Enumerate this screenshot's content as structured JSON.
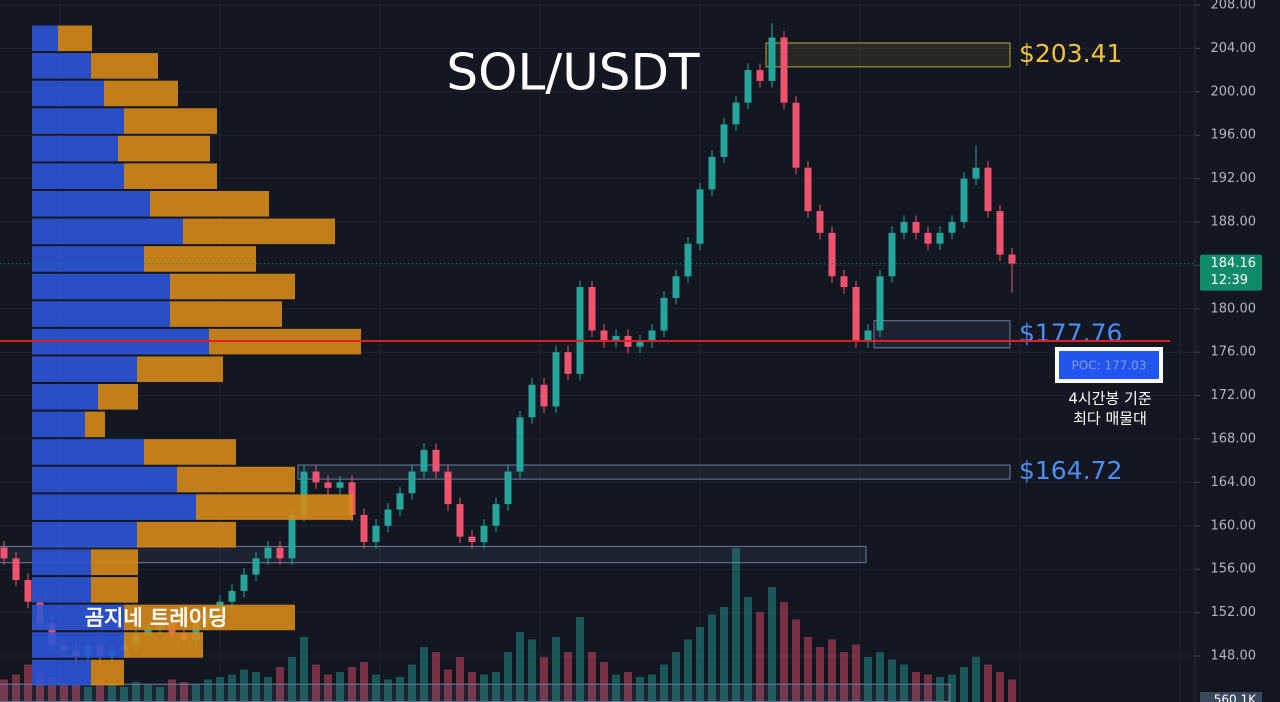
{
  "chart_data": {
    "type": "candlestick",
    "title": "SOL/USDT",
    "watermark": "곰지네 트레이딩",
    "ylim": [
      143.76,
      208.46
    ],
    "yticks": [
      {
        "value": 148,
        "label": "148.00"
      },
      {
        "value": 152,
        "label": "152.00"
      },
      {
        "value": 156,
        "label": "156.00"
      },
      {
        "value": 160,
        "label": "160.00"
      },
      {
        "value": 164,
        "label": "164.00"
      },
      {
        "value": 168,
        "label": "168.00"
      },
      {
        "value": 172,
        "label": "172.00"
      },
      {
        "value": 176,
        "label": "176.00"
      },
      {
        "value": 180,
        "label": "180.00"
      },
      {
        "value": 184,
        "label": "184.00"
      },
      {
        "value": 188,
        "label": "188.00"
      },
      {
        "value": 192,
        "label": "192.00"
      },
      {
        "value": 196,
        "label": "196.00"
      },
      {
        "value": 200,
        "label": "200.00"
      },
      {
        "value": 204,
        "label": "204.00"
      },
      {
        "value": 208,
        "label": "208.00"
      }
    ],
    "grid": true,
    "up_color": "#26a69a",
    "down_color": "#ef5370",
    "ohlc": [
      [
        158,
        158.6,
        156.4,
        157
      ],
      [
        157,
        157.6,
        154.4,
        155
      ],
      [
        155,
        155.6,
        152.4,
        153
      ],
      [
        153,
        153.6,
        150.4,
        151
      ],
      [
        151,
        151.6,
        148.4,
        149
      ],
      [
        149,
        149.6,
        147.9,
        148.5
      ],
      [
        148.5,
        149.1,
        147.4,
        148
      ],
      [
        148,
        149.6,
        147.4,
        149
      ],
      [
        149,
        149.6,
        147.4,
        148
      ],
      [
        148,
        149.1,
        147.4,
        148.5
      ],
      [
        148.5,
        149.6,
        147.9,
        149
      ],
      [
        149,
        150.6,
        148.4,
        150
      ],
      [
        150,
        151.1,
        149.4,
        150.5
      ],
      [
        150.5,
        151.6,
        149.9,
        151
      ],
      [
        151,
        151.6,
        149.4,
        150
      ],
      [
        150,
        150.6,
        148.9,
        149.5
      ],
      [
        149.5,
        151.6,
        148.9,
        151
      ],
      [
        151,
        152.6,
        150.4,
        152
      ],
      [
        152,
        153.6,
        151.4,
        153
      ],
      [
        153,
        154.6,
        152.4,
        154
      ],
      [
        154,
        156.1,
        153.4,
        155.5
      ],
      [
        155.5,
        157.6,
        154.9,
        157
      ],
      [
        157,
        158.6,
        156.4,
        158
      ],
      [
        158,
        158.6,
        156.4,
        157
      ],
      [
        157,
        161.6,
        156.4,
        161
      ],
      [
        161,
        165.6,
        160.4,
        165
      ],
      [
        165,
        165.6,
        163.4,
        164
      ],
      [
        164,
        164.6,
        162.9,
        163.5
      ],
      [
        163.5,
        164.6,
        162.9,
        164
      ],
      [
        164,
        164.6,
        160.4,
        161
      ],
      [
        161,
        161.6,
        157.9,
        158.5
      ],
      [
        158.5,
        160.6,
        157.9,
        160
      ],
      [
        160,
        162.1,
        159.4,
        161.5
      ],
      [
        161.5,
        163.6,
        160.9,
        163
      ],
      [
        163,
        165.6,
        162.4,
        165
      ],
      [
        165,
        167.6,
        164.4,
        167
      ],
      [
        167,
        167.6,
        164.4,
        165
      ],
      [
        165,
        165.6,
        161.4,
        162
      ],
      [
        162,
        162.6,
        158.4,
        159
      ],
      [
        159,
        159.6,
        157.9,
        158.5
      ],
      [
        158.5,
        160.6,
        157.9,
        160
      ],
      [
        160,
        162.6,
        159.4,
        162
      ],
      [
        162,
        165.6,
        161.4,
        165
      ],
      [
        165,
        170.6,
        164.4,
        170
      ],
      [
        170,
        173.6,
        169.4,
        173
      ],
      [
        173,
        173.6,
        170.4,
        171
      ],
      [
        171,
        176.6,
        170.4,
        176
      ],
      [
        176,
        176.6,
        173.4,
        174
      ],
      [
        174,
        182.6,
        173.4,
        182
      ],
      [
        182,
        182.6,
        177.4,
        178
      ],
      [
        178,
        178.6,
        176.4,
        177
      ],
      [
        177,
        178.1,
        176.4,
        177.5
      ],
      [
        177.5,
        178.1,
        175.9,
        176.5
      ],
      [
        176.5,
        177.6,
        175.9,
        177
      ],
      [
        177,
        178.6,
        176.4,
        178
      ],
      [
        178,
        181.6,
        177.4,
        181
      ],
      [
        181,
        183.6,
        180.4,
        183
      ],
      [
        183,
        186.6,
        182.4,
        186
      ],
      [
        186,
        191.6,
        185.4,
        191
      ],
      [
        191,
        194.6,
        190.4,
        194
      ],
      [
        194,
        197.6,
        193.4,
        197
      ],
      [
        197,
        199.6,
        196.4,
        199
      ],
      [
        199,
        202.6,
        198.4,
        202
      ],
      [
        202,
        202.6,
        200.4,
        201
      ],
      [
        201,
        206.3,
        200.4,
        205
      ],
      [
        205,
        205.6,
        198.4,
        199
      ],
      [
        199,
        199.6,
        192.4,
        193
      ],
      [
        193,
        193.6,
        188.4,
        189
      ],
      [
        189,
        189.6,
        186.4,
        187
      ],
      [
        187,
        187.6,
        182.4,
        183
      ],
      [
        183,
        183.6,
        181.4,
        182
      ],
      [
        182,
        182.6,
        176.4,
        177
      ],
      [
        177,
        178.6,
        176.4,
        178
      ],
      [
        178,
        183.6,
        177.4,
        183
      ],
      [
        183,
        187.6,
        182.4,
        187
      ],
      [
        187,
        188.6,
        186.4,
        188
      ],
      [
        188,
        188.6,
        186.4,
        187
      ],
      [
        187,
        187.6,
        185.4,
        186
      ],
      [
        186,
        187.6,
        185.4,
        187
      ],
      [
        187,
        188.6,
        186.4,
        188
      ],
      [
        188,
        192.6,
        187.4,
        192
      ],
      [
        192,
        195,
        191.4,
        193
      ],
      [
        193,
        193.6,
        188.4,
        189
      ],
      [
        189,
        189.6,
        184.4,
        185
      ],
      [
        185,
        185.6,
        181.5,
        184.16
      ]
    ],
    "volume": [
      90,
      110,
      150,
      120,
      100,
      80,
      70,
      60,
      90,
      70,
      60,
      80,
      70,
      60,
      90,
      80,
      70,
      90,
      100,
      110,
      130,
      120,
      100,
      140,
      180,
      260,
      150,
      110,
      120,
      140,
      160,
      110,
      90,
      100,
      150,
      220,
      200,
      130,
      180,
      120,
      110,
      120,
      200,
      280,
      250,
      180,
      260,
      200,
      340,
      200,
      160,
      110,
      120,
      100,
      110,
      150,
      200,
      250,
      300,
      350,
      380,
      616,
      420,
      360,
      460,
      400,
      330,
      260,
      220,
      250,
      200,
      230,
      180,
      200,
      170,
      150,
      120,
      110,
      100,
      110,
      140,
      180,
      150,
      120,
      90
    ],
    "vlim": [
      0,
      800
    ],
    "volume_label": "560.1K",
    "profile_range": [
      145.2,
      206.2
    ],
    "profile_xlim": [
      0,
      330
    ],
    "profile_buy": [
      26,
      59,
      72,
      92,
      86,
      92,
      118,
      151,
      112,
      138,
      138,
      177,
      105,
      66,
      53,
      112,
      145,
      164,
      105,
      59,
      59,
      92,
      92,
      59
    ],
    "profile_sell": [
      34,
      67,
      74,
      93,
      92,
      93,
      119,
      152,
      112,
      125,
      112,
      152,
      86,
      40,
      20,
      92,
      118,
      157,
      99,
      47,
      47,
      171,
      79,
      33
    ],
    "profile_colors": [
      "#2d55d6",
      "#d68a1a"
    ],
    "zones": [
      {
        "label": "$203.41",
        "low": 202.3,
        "high": 204.5,
        "from": 64,
        "to": 84,
        "color": "#b8a830",
        "label_color": "#f2c23a"
      },
      {
        "label": "$177.76",
        "low": 176.4,
        "high": 178.9,
        "from": 73,
        "to": 84,
        "color": "#6a7f9c",
        "label_color": "#4d8ef5"
      },
      {
        "label": "$164.72",
        "low": 164.3,
        "high": 165.6,
        "from": 25,
        "to": 84,
        "color": "#6a7f9c",
        "label_color": "#4d8ef5"
      },
      {
        "low": 156.6,
        "high": 158.1,
        "from": 0,
        "to": 72,
        "color": "#6a7f9c"
      },
      {
        "low": 143.8,
        "high": 145.4,
        "from": 0,
        "to": 79,
        "color": "#6a7f9c"
      }
    ],
    "poc": {
      "label": "POC: 177.03",
      "value": 177.03,
      "color": "#e02020",
      "note": [
        "4시간봉 기준",
        "최다 매물대"
      ]
    },
    "last": {
      "price": 184.16,
      "time": "12:39",
      "color": "#0f8a6a"
    }
  }
}
